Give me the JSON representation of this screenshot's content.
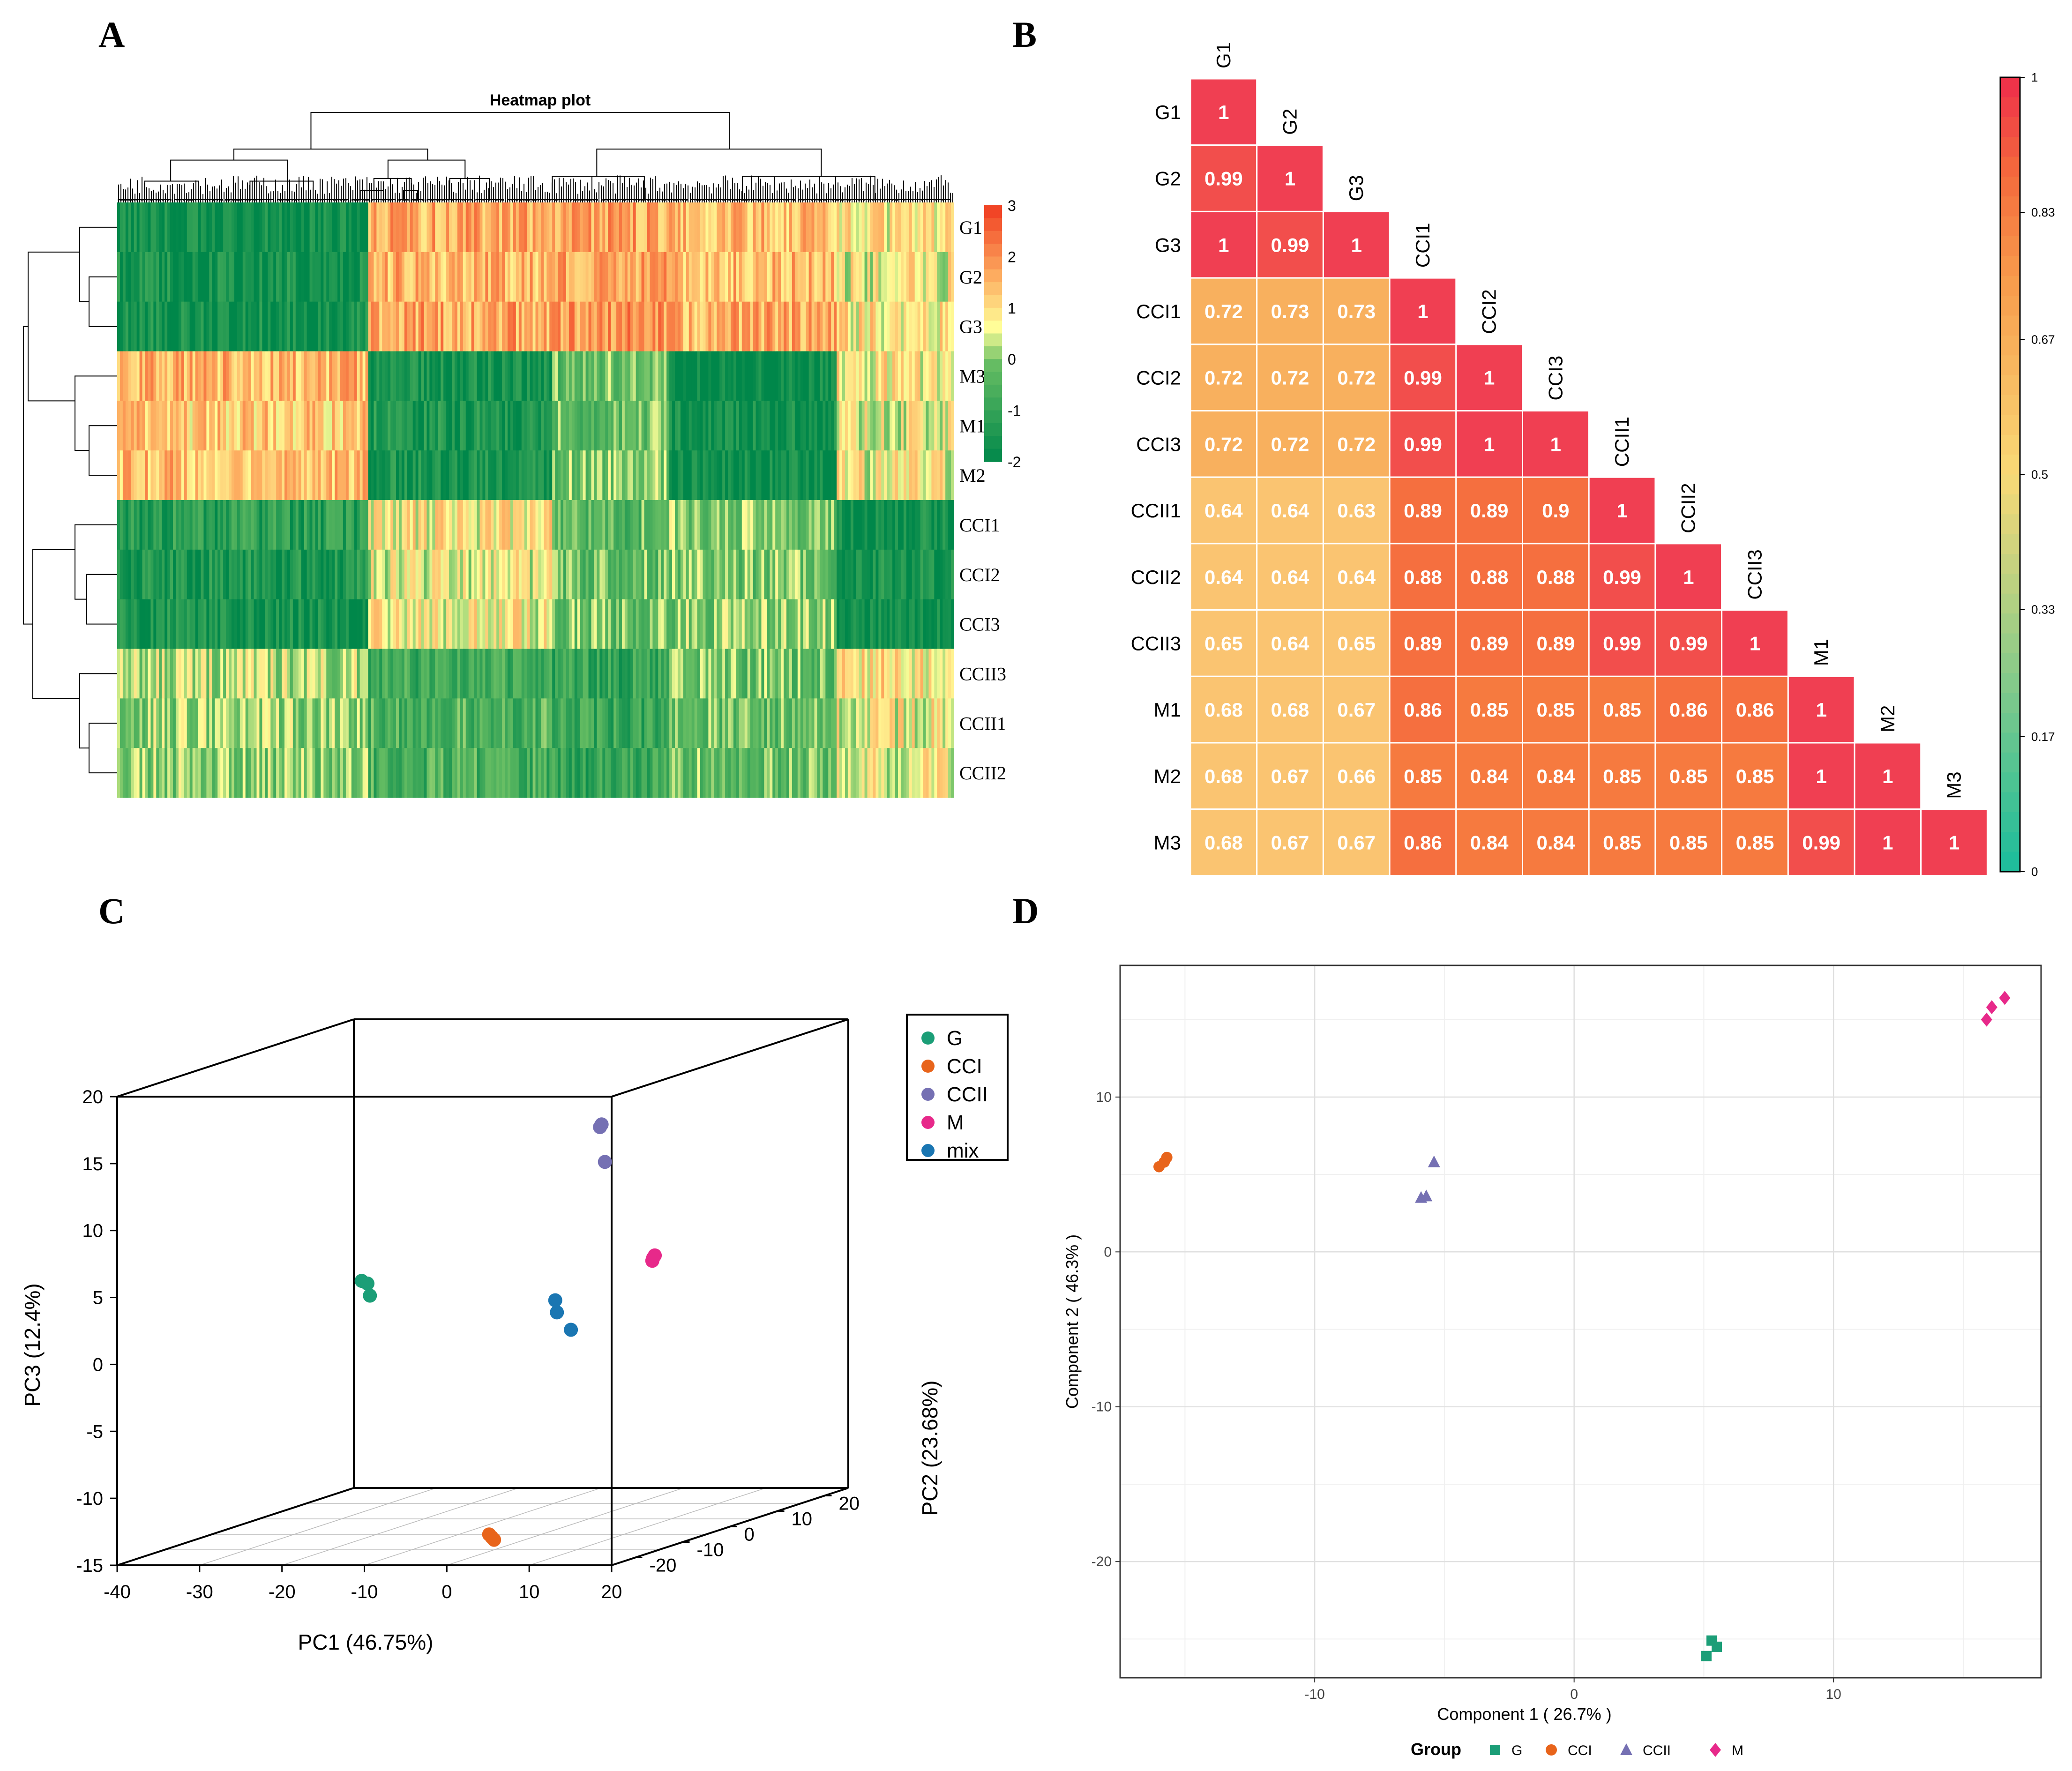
{
  "panels": {
    "a": "A",
    "b": "B",
    "c": "C",
    "d": "D"
  },
  "chart_data": [
    {
      "type": "heatmap",
      "title": "Heatmap plot",
      "row_labels": [
        "G1",
        "G2",
        "G3",
        "M3",
        "M1",
        "M2",
        "CCI1",
        "CCI2",
        "CCI3",
        "CCII3",
        "CCII1",
        "CCII2"
      ],
      "legend_ticks": [
        "3",
        "2",
        "1",
        "0",
        "-1",
        "-2"
      ],
      "value_range": [
        -2,
        3
      ],
      "colors": {
        "high": "#f03b20",
        "mid": "#ffff99",
        "low": "#00874a"
      },
      "segment_pattern": [
        {
          "span": 0.3,
          "values": [
            -1.8,
            -1.6,
            -1.7,
            1.5,
            1.2,
            1.4,
            -1.2,
            -1.5,
            -1.6,
            0.3,
            0.1,
            0.0
          ]
        },
        {
          "span": 0.22,
          "values": [
            1.6,
            1.5,
            1.7,
            -1.7,
            -1.5,
            -1.6,
            0.8,
            0.6,
            0.7,
            -0.8,
            -0.6,
            -0.7
          ]
        },
        {
          "span": 0.14,
          "values": [
            1.7,
            1.8,
            1.9,
            -0.2,
            -0.2,
            -0.1,
            -0.4,
            -0.3,
            -0.2,
            -1.0,
            -0.9,
            -1.0
          ]
        },
        {
          "span": 0.2,
          "values": [
            1.4,
            1.5,
            1.6,
            -1.9,
            -1.8,
            -1.9,
            0.0,
            -0.1,
            0.0,
            -0.2,
            -0.3,
            -0.2
          ]
        },
        {
          "span": 0.14,
          "values": [
            0.8,
            0.7,
            0.9,
            0.8,
            0.6,
            0.7,
            -1.8,
            -1.7,
            -1.9,
            0.9,
            0.7,
            0.6
          ]
        }
      ]
    },
    {
      "type": "heatmap",
      "subtype": "correlation-lower-triangle",
      "labels": [
        "G1",
        "G2",
        "G3",
        "CCI1",
        "CCI2",
        "CCI3",
        "CCII1",
        "CCII2",
        "CCII3",
        "M1",
        "M2",
        "M3"
      ],
      "matrix": [
        [
          1
        ],
        [
          0.99,
          1
        ],
        [
          1,
          0.99,
          1
        ],
        [
          0.72,
          0.73,
          0.73,
          1
        ],
        [
          0.72,
          0.72,
          0.72,
          0.99,
          1
        ],
        [
          0.72,
          0.72,
          0.72,
          0.99,
          1,
          1
        ],
        [
          0.64,
          0.64,
          0.63,
          0.89,
          0.89,
          0.9,
          1
        ],
        [
          0.64,
          0.64,
          0.64,
          0.88,
          0.88,
          0.88,
          0.99,
          1
        ],
        [
          0.65,
          0.64,
          0.65,
          0.89,
          0.89,
          0.89,
          0.99,
          0.99,
          1
        ],
        [
          0.68,
          0.68,
          0.67,
          0.86,
          0.85,
          0.85,
          0.85,
          0.86,
          0.86,
          1
        ],
        [
          0.68,
          0.67,
          0.66,
          0.85,
          0.84,
          0.84,
          0.85,
          0.85,
          0.85,
          1,
          1
        ],
        [
          0.68,
          0.67,
          0.67,
          0.86,
          0.84,
          0.84,
          0.85,
          0.85,
          0.85,
          0.99,
          1,
          1
        ]
      ],
      "colorbar": {
        "range": [
          0,
          1
        ],
        "ticks": [
          "1",
          "0.83",
          "0.67",
          "0.5",
          "0.33",
          "0.17",
          "0"
        ]
      }
    },
    {
      "type": "scatter",
      "subtype": "3d-pca",
      "xlabel": "PC1 (46.75%)",
      "ylabel": "PC2 (23.68%)",
      "zlabel": "PC3 (12.4%)",
      "x_ticks": [
        "-40",
        "-30",
        "-20",
        "-10",
        "0",
        "10",
        "20"
      ],
      "y_ticks": [
        "-20",
        "-10",
        "0",
        "10",
        "20"
      ],
      "z_ticks": [
        "20",
        "15",
        "10",
        "5",
        "0",
        "-5",
        "-10",
        "-15"
      ],
      "legend_placement": "top-right",
      "series": [
        {
          "name": "G",
          "color": "#1b9e77",
          "points": [
            [
              -15.5,
              -16,
              5.2
            ],
            [
              -14.8,
              -16,
              5.0
            ],
            [
              -14.5,
              -16,
              4.1
            ]
          ]
        },
        {
          "name": "CCI",
          "color": "#e8641b",
          "points": [
            [
              -9.8,
              1,
              -15.7
            ],
            [
              -9.5,
              1,
              -15.9
            ],
            [
              -9.2,
              1,
              -16.1
            ]
          ]
        },
        {
          "name": "CCII",
          "color": "#7570b3",
          "points": [
            [
              -6.4,
              18.5,
              12.7
            ],
            [
              -6.2,
              18.5,
              12.9
            ],
            [
              -5.8,
              18.5,
              10.1
            ]
          ]
        },
        {
          "name": "M",
          "color": "#e7298a",
          "points": [
            [
              12.3,
              -3,
              5.2
            ],
            [
              12.4,
              -3,
              5.4
            ],
            [
              12.6,
              -3,
              5.6
            ]
          ]
        },
        {
          "name": "mix",
          "color": "#1a76b2",
          "points": [
            [
              -1.2,
              0,
              1.9
            ],
            [
              -1.0,
              0,
              1.0
            ],
            [
              0.7,
              0,
              -0.3
            ]
          ]
        }
      ]
    },
    {
      "type": "scatter",
      "xlabel": "Component 1 ( 26.7% )",
      "ylabel": "Component 2 ( 46.3% )",
      "xlim": [
        -17.5,
        18
      ],
      "ylim": [
        -27.5,
        18.5
      ],
      "x_ticks": [
        "-10",
        "0",
        "10"
      ],
      "y_ticks": [
        "10",
        "0",
        "-10",
        "-20"
      ],
      "legend_title": "Group",
      "legend_placement": "bottom",
      "series": [
        {
          "name": "G",
          "shape": "square",
          "color": "#1b9e77",
          "points": [
            [
              5.1,
              -26.1
            ],
            [
              5.3,
              -25.1
            ],
            [
              5.5,
              -25.5
            ]
          ]
        },
        {
          "name": "CCI",
          "shape": "circle",
          "color": "#e8641b",
          "points": [
            [
              -16.0,
              5.5
            ],
            [
              -15.8,
              5.8
            ],
            [
              -15.7,
              6.1
            ]
          ]
        },
        {
          "name": "CCII",
          "shape": "triangle",
          "color": "#7570b3",
          "points": [
            [
              -5.9,
              3.5
            ],
            [
              -5.7,
              3.6
            ],
            [
              -5.4,
              5.8
            ]
          ]
        },
        {
          "name": "M",
          "shape": "diamond",
          "color": "#e7298a",
          "points": [
            [
              15.9,
              15.0
            ],
            [
              16.1,
              15.8
            ],
            [
              16.6,
              16.4
            ]
          ]
        }
      ]
    }
  ]
}
